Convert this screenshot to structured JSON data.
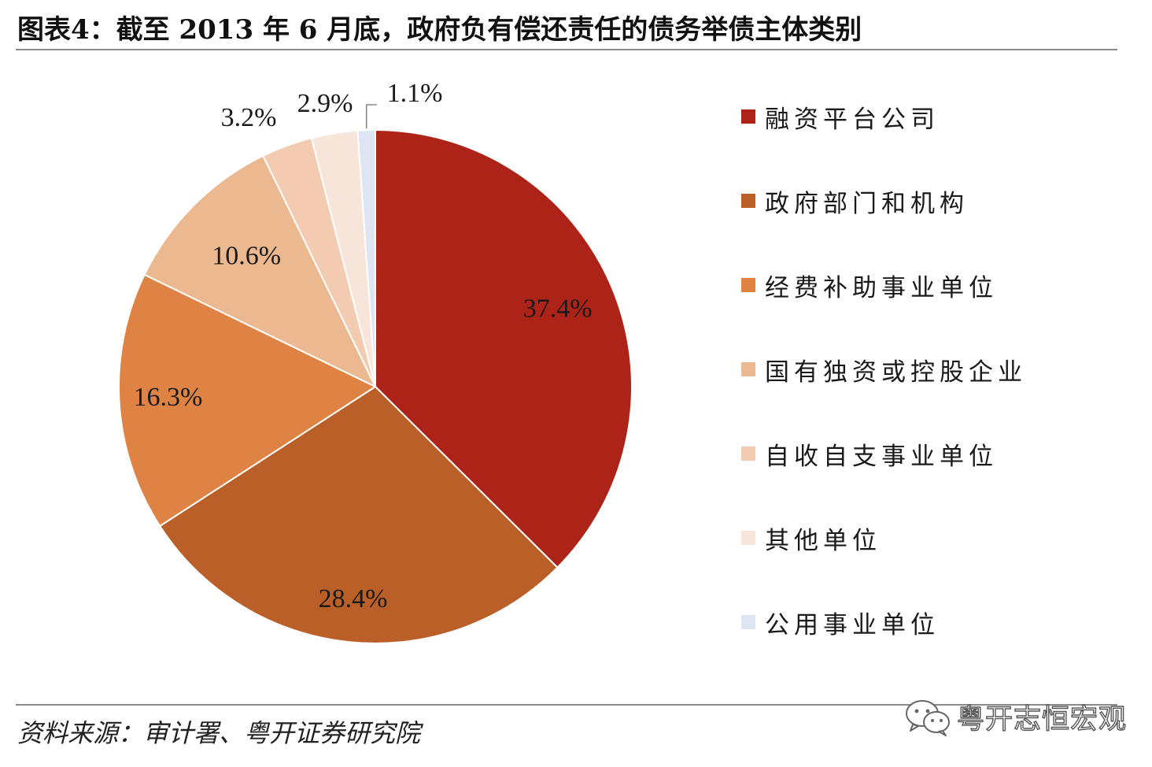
{
  "title": "图表4：截至 2013 年 6 月底，政府负有偿还责任的债务举债主体类别",
  "chart_data": {
    "type": "pie",
    "start_angle_deg": 0,
    "direction": "clockwise",
    "slices": [
      {
        "name": "融资平台公司",
        "value": 37.4,
        "label": "37.4%",
        "color": "#ae2318"
      },
      {
        "name": "政府部门和机构",
        "value": 28.4,
        "label": "28.4%",
        "color": "#b95f27"
      },
      {
        "name": "经费补助事业单位",
        "value": 16.3,
        "label": "16.3%",
        "color": "#df8344"
      },
      {
        "name": "国有独资或控股企业",
        "value": 10.6,
        "label": "10.6%",
        "color": "#ebb88f"
      },
      {
        "name": "自收自支事业单位",
        "value": 3.2,
        "label": "3.2%",
        "color": "#f2cbb1"
      },
      {
        "name": "其他单位",
        "value": 2.9,
        "label": "2.9%",
        "color": "#f8e5d9"
      },
      {
        "name": "公用事业单位",
        "value": 1.1,
        "label": "1.1%",
        "color": "#dde6f2"
      }
    ],
    "legend_position": "right"
  },
  "source": "资料来源：审计署、粤开证券研究院",
  "watermark": "粤开志恒宏观",
  "colors": {
    "rule": "#8a8a8a",
    "background": "#ffffff"
  }
}
